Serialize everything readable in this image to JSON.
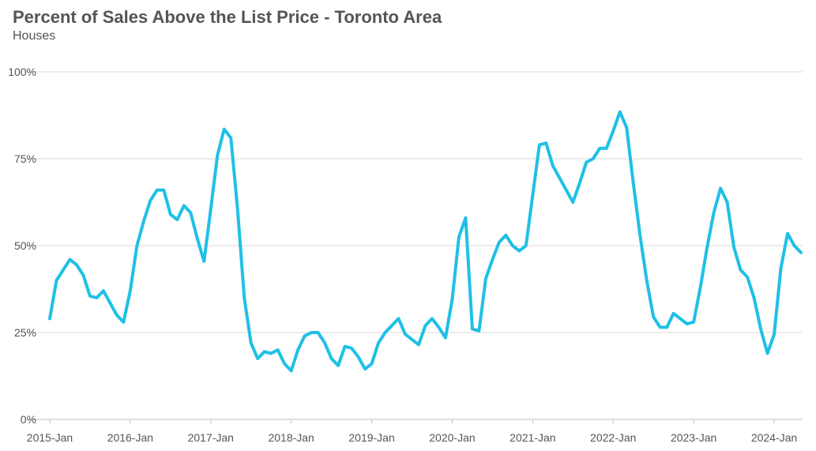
{
  "chart_data": {
    "type": "line",
    "title": "Percent of Sales Above the List Price - Toronto Area",
    "subtitle": "Houses",
    "xlabel": "",
    "ylabel": "",
    "ylim": [
      0,
      100
    ],
    "y_ticks": [
      0,
      25,
      50,
      75,
      100
    ],
    "y_tick_labels": [
      "0%",
      "25%",
      "50%",
      "75%",
      "100%"
    ],
    "x_range": [
      "2015-01",
      "2024-05"
    ],
    "x_ticks": [
      "2015-01",
      "2016-01",
      "2017-01",
      "2018-01",
      "2019-01",
      "2020-01",
      "2021-01",
      "2022-01",
      "2023-01",
      "2024-01"
    ],
    "x_tick_labels": [
      "2015-Jan",
      "2016-Jan",
      "2017-Jan",
      "2018-Jan",
      "2019-Jan",
      "2020-Jan",
      "2021-Jan",
      "2022-Jan",
      "2023-Jan",
      "2024-Jan"
    ],
    "grid": true,
    "legend": "none",
    "color": "#1FC0E6",
    "series": [
      {
        "x": [
          "2015-01",
          "2015-02",
          "2015-03",
          "2015-04",
          "2015-05",
          "2015-06",
          "2015-07",
          "2015-08",
          "2015-09",
          "2015-10",
          "2015-11",
          "2015-12",
          "2016-01",
          "2016-02",
          "2016-03",
          "2016-04",
          "2016-05",
          "2016-06",
          "2016-07",
          "2016-08",
          "2016-09",
          "2016-10",
          "2016-11",
          "2016-12",
          "2017-01",
          "2017-02",
          "2017-03",
          "2017-04",
          "2017-05",
          "2017-06",
          "2017-07",
          "2017-08",
          "2017-09",
          "2017-10",
          "2017-11",
          "2017-12",
          "2018-01",
          "2018-02",
          "2018-03",
          "2018-04",
          "2018-05",
          "2018-06",
          "2018-07",
          "2018-08",
          "2018-09",
          "2018-10",
          "2018-11",
          "2018-12",
          "2019-01",
          "2019-02",
          "2019-03",
          "2019-04",
          "2019-05",
          "2019-06",
          "2019-07",
          "2019-08",
          "2019-09",
          "2019-10",
          "2019-11",
          "2019-12",
          "2020-01",
          "2020-02",
          "2020-03",
          "2020-04",
          "2020-05",
          "2020-06",
          "2020-07",
          "2020-08",
          "2020-09",
          "2020-10",
          "2020-11",
          "2020-12",
          "2021-01",
          "2021-02",
          "2021-03",
          "2021-04",
          "2021-05",
          "2021-06",
          "2021-07",
          "2021-08",
          "2021-09",
          "2021-10",
          "2021-11",
          "2021-12",
          "2022-01",
          "2022-02",
          "2022-03",
          "2022-04",
          "2022-05",
          "2022-06",
          "2022-07",
          "2022-08",
          "2022-09",
          "2022-10",
          "2022-11",
          "2022-12",
          "2023-01",
          "2023-02",
          "2023-03",
          "2023-04",
          "2023-05",
          "2023-06",
          "2023-07",
          "2023-08",
          "2023-09",
          "2023-10",
          "2023-11",
          "2023-12",
          "2024-01",
          "2024-02",
          "2024-03",
          "2024-04",
          "2024-05"
        ],
        "values": [
          29,
          40,
          43,
          46,
          44.5,
          41.5,
          35.5,
          35,
          37,
          33.5,
          30,
          28,
          37,
          50,
          57,
          63,
          66,
          66,
          59,
          57.5,
          61.5,
          59.5,
          52,
          45.5,
          60.5,
          76,
          83.5,
          81,
          60.5,
          35,
          22,
          17.5,
          19.5,
          19,
          20,
          16,
          14,
          20,
          24,
          25,
          25,
          22,
          17.5,
          15.5,
          21,
          20.5,
          18,
          14.5,
          16,
          22,
          25,
          27,
          29,
          24.5,
          23,
          21.5,
          27,
          29,
          26.5,
          23.5,
          34.5,
          52.5,
          58,
          26,
          25.5,
          40.5,
          46,
          51,
          53,
          50,
          48.5,
          50,
          64.5,
          79,
          79.5,
          73,
          69.5,
          66,
          62.5,
          68,
          74,
          75,
          78,
          78,
          83,
          88.5,
          84,
          68,
          53,
          40,
          29.5,
          26.5,
          26.5,
          30.5,
          29,
          27.5,
          28,
          38,
          49.5,
          59.5,
          66.5,
          62.5,
          49.5,
          43,
          41,
          35,
          26,
          19,
          24.5,
          43.5,
          53.5,
          50,
          48
        ]
      }
    ]
  }
}
